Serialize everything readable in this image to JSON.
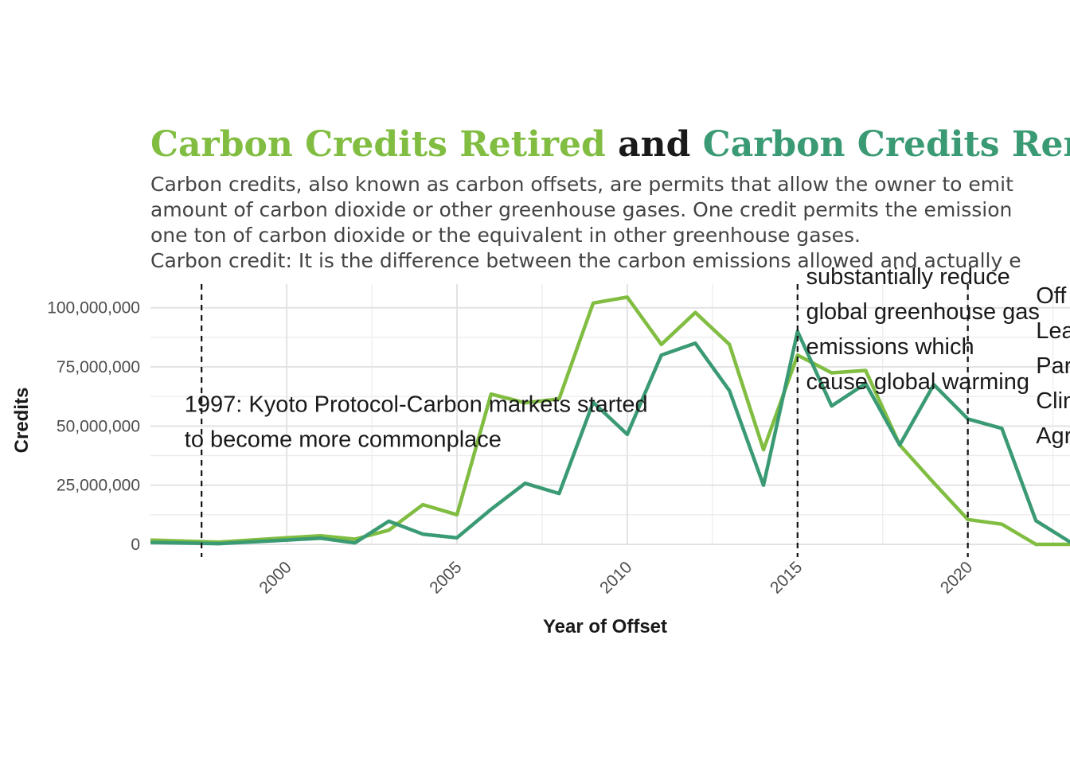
{
  "chart_data": {
    "type": "line",
    "title": {
      "part1": "Carbon Credits Retired",
      "part2": " and ",
      "part3": "Carbon Credits Remaining"
    },
    "subtitle": [
      "Carbon credits, also known as carbon offsets, are permits that allow the owner to emit",
      "amount of carbon dioxide or other greenhouse gases. One credit permits the emission",
      "one ton of carbon dioxide or the equivalent in other greenhouse gases.",
      "Carbon credit: It is the difference between the carbon emissions allowed and actually e"
    ],
    "xlabel": "Year of Offset",
    "ylabel": "Credits",
    "xlim": [
      1996,
      2023
    ],
    "ylim": [
      0,
      110000000
    ],
    "x_ticks": [
      2000,
      2005,
      2010,
      2015,
      2020
    ],
    "y_ticks": [
      0,
      25000000,
      50000000,
      75000000,
      100000000
    ],
    "y_tick_labels": [
      "0",
      "25,000,000",
      "50,000,000",
      "75,000,000",
      "100,000,000"
    ],
    "grid": true,
    "series": [
      {
        "name": "Carbon Credits Retired",
        "color": "#80bd41",
        "x": [
          1996,
          1998,
          2000,
          2001,
          2002,
          2003,
          2004,
          2005,
          2006,
          2007,
          2008,
          2009,
          2010,
          2011,
          2012,
          2013,
          2014,
          2015,
          2016,
          2017,
          2018,
          2019,
          2020,
          2021,
          2022,
          2023
        ],
        "values": [
          1800000,
          900000,
          2800000,
          3600000,
          2200000,
          6000000,
          16800000,
          12500000,
          63500000,
          59800000,
          61500000,
          102000000,
          104500000,
          84500000,
          98000000,
          84500000,
          40000000,
          80000000,
          72500000,
          73500000,
          42000000,
          26000000,
          10500000,
          8500000,
          0,
          0
        ]
      },
      {
        "name": "Carbon Credits Remaining",
        "color": "#3a9a73",
        "x": [
          1996,
          1998,
          2000,
          2001,
          2002,
          2003,
          2004,
          2005,
          2006,
          2007,
          2008,
          2009,
          2010,
          2011,
          2012,
          2013,
          2014,
          2015,
          2016,
          2017,
          2018,
          2019,
          2020,
          2021,
          2022,
          2023
        ],
        "values": [
          800000,
          300000,
          1800000,
          2600000,
          600000,
          9800000,
          4300000,
          2800000,
          14800000,
          25800000,
          21500000,
          60000000,
          46500000,
          80000000,
          85000000,
          65000000,
          25000000,
          90000000,
          58500000,
          68000000,
          42000000,
          67500000,
          53000000,
          49000000,
          10000000,
          1000000
        ]
      }
    ],
    "vlines": [
      1997.5,
      2015,
      2020
    ],
    "annotations": [
      {
        "x": 1997,
        "y": 56000000,
        "lines": [
          "1997: Kyoto Protocol-Carbon markets started",
          "to become more commonplace"
        ]
      },
      {
        "x": 2015.25,
        "y": 110000000,
        "lines": [
          "substantially reduce",
          "global greenhouse gas",
          "emissions which",
          "cause global warming"
        ]
      },
      {
        "x": 2022,
        "y": 102000000,
        "lines": [
          "Off",
          "Lea",
          "Par",
          "Clin",
          "Agr"
        ]
      }
    ]
  }
}
